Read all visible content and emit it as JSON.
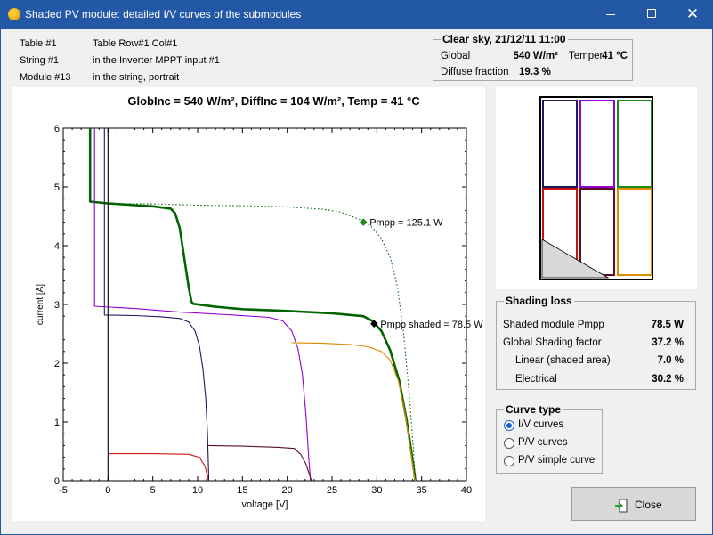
{
  "window": {
    "title": "Shaded PV module: detailed I/V curves of the submodules"
  },
  "info": {
    "rows": [
      {
        "label": "Table #1",
        "value": "Table Row#1 Col#1"
      },
      {
        "label": "String #1",
        "value": "in the Inverter MPPT input #1"
      },
      {
        "label": "Module #13",
        "value": "in the string, portrait"
      }
    ]
  },
  "weather": {
    "title": "Clear sky, 21/12/11 11:00",
    "global_label": "Global",
    "global_value": "540 W/m²",
    "temp_label": "Temper.",
    "temp_value": "41 °C",
    "diffuse_label": "Diffuse fraction",
    "diffuse_value": "19.3 %"
  },
  "chart_data": {
    "type": "line",
    "title": "GlobInc = 540 W/m², DiffInc = 104 W/m², Temp = 41 °C",
    "xlabel": "voltage [V]",
    "ylabel": "current [A]",
    "xlim": [
      -5,
      40
    ],
    "ylim": [
      0,
      6
    ],
    "xticks": [
      -5,
      0,
      5,
      10,
      15,
      20,
      25,
      30,
      35,
      40
    ],
    "yticks": [
      0,
      1,
      2,
      3,
      4,
      5,
      6
    ],
    "annotations": [
      {
        "text": "Pmpp = 125.1 W",
        "x": 28.5,
        "y": 4.4
      },
      {
        "text": "Pmpp shaded = 78.5 W",
        "x": 29.7,
        "y": 2.67
      }
    ],
    "series": [
      {
        "color": "#006400",
        "style": "dotted",
        "points": [
          [
            -2,
            4.74
          ],
          [
            0,
            4.72
          ],
          [
            5,
            4.71
          ],
          [
            10,
            4.69
          ],
          [
            15,
            4.68
          ],
          [
            20,
            4.66
          ],
          [
            24,
            4.62
          ],
          [
            26,
            4.57
          ],
          [
            28,
            4.45
          ],
          [
            29.5,
            4.31
          ],
          [
            30.5,
            4.12
          ],
          [
            31.5,
            3.8
          ],
          [
            32.3,
            3.3
          ],
          [
            33,
            2.5
          ],
          [
            33.6,
            1.5
          ],
          [
            34.1,
            0.5
          ],
          [
            34.3,
            0
          ]
        ]
      },
      {
        "color": "#006400",
        "style": "thick",
        "points": [
          [
            -2,
            6
          ],
          [
            -2,
            4.75
          ],
          [
            0,
            4.72
          ],
          [
            3,
            4.69
          ],
          [
            5,
            4.67
          ],
          [
            7,
            4.63
          ],
          [
            7.5,
            4.55
          ],
          [
            8,
            4.3
          ],
          [
            8.5,
            3.8
          ],
          [
            9,
            3.3
          ],
          [
            9.3,
            3.05
          ],
          [
            9.5,
            3.01
          ],
          [
            12,
            2.96
          ],
          [
            15,
            2.92
          ],
          [
            20,
            2.89
          ],
          [
            25,
            2.85
          ],
          [
            28.5,
            2.8
          ],
          [
            29.5,
            2.72
          ],
          [
            30.5,
            2.55
          ],
          [
            31.5,
            2.22
          ],
          [
            32.5,
            1.7
          ],
          [
            33.3,
            1.05
          ],
          [
            33.8,
            0.55
          ],
          [
            34.2,
            0.12
          ],
          [
            34.3,
            0
          ]
        ]
      },
      {
        "color": "#1b1b5e",
        "style": "solid",
        "points": [
          [
            -0.4,
            6
          ],
          [
            -0.4,
            2.82
          ],
          [
            3,
            2.81
          ],
          [
            6,
            2.79
          ],
          [
            8,
            2.76
          ],
          [
            9,
            2.7
          ],
          [
            9.7,
            2.55
          ],
          [
            10.2,
            2.3
          ],
          [
            10.6,
            1.9
          ],
          [
            10.9,
            1.4
          ],
          [
            11.1,
            0.8
          ],
          [
            11.25,
            0
          ]
        ]
      },
      {
        "color": "#9400d3",
        "style": "solid",
        "points": [
          [
            -1.5,
            6
          ],
          [
            -1.5,
            2.97
          ],
          [
            3,
            2.93
          ],
          [
            8,
            2.87
          ],
          [
            14,
            2.82
          ],
          [
            18,
            2.78
          ],
          [
            19.5,
            2.72
          ],
          [
            20.5,
            2.55
          ],
          [
            21.2,
            2.25
          ],
          [
            21.7,
            1.8
          ],
          [
            22.1,
            1.1
          ],
          [
            22.4,
            0.4
          ],
          [
            22.6,
            0
          ]
        ]
      },
      {
        "color": "#e08a00",
        "style": "solid",
        "points": [
          [
            20.5,
            2.35
          ],
          [
            24,
            2.34
          ],
          [
            27,
            2.32
          ],
          [
            29,
            2.28
          ],
          [
            30.5,
            2.2
          ],
          [
            31.5,
            2.05
          ],
          [
            32.4,
            1.7
          ],
          [
            33.1,
            1.2
          ],
          [
            33.7,
            0.6
          ],
          [
            34.2,
            0.05
          ],
          [
            34.3,
            0
          ]
        ]
      },
      {
        "color": "#5a0f22",
        "style": "solid",
        "points": [
          [
            11.2,
            0.6
          ],
          [
            15,
            0.59
          ],
          [
            19,
            0.57
          ],
          [
            20.8,
            0.55
          ],
          [
            21.5,
            0.45
          ],
          [
            22.1,
            0.28
          ],
          [
            22.6,
            0.05
          ],
          [
            22.7,
            0
          ]
        ]
      },
      {
        "color": "#cc1111",
        "style": "solid",
        "points": [
          [
            0,
            0.46
          ],
          [
            5,
            0.46
          ],
          [
            9,
            0.45
          ],
          [
            10.2,
            0.4
          ],
          [
            10.8,
            0.25
          ],
          [
            11.1,
            0.08
          ],
          [
            11.2,
            0
          ]
        ]
      },
      {
        "color": "#000000",
        "style": "solid",
        "points": [
          [
            0,
            0
          ],
          [
            0,
            6
          ]
        ]
      }
    ]
  },
  "module": {
    "submodule_colors": [
      "#1b1b5e",
      "#9400d3",
      "#1a8a1a",
      "#cc1111",
      "#5a0f22",
      "#e08a00"
    ]
  },
  "shading": {
    "title": "Shading loss",
    "rows": [
      {
        "label": "Shaded module Pmpp",
        "value": "78.5 W"
      },
      {
        "label": "Global Shading factor",
        "value": "37.2 %"
      },
      {
        "label": "Linear (shaded area)",
        "value": "7.0 %"
      },
      {
        "label": "Electrical",
        "value": "30.2 %"
      }
    ]
  },
  "curve_type": {
    "title": "Curve type",
    "options": [
      "I/V curves",
      "P/V curves",
      "P/V simple curve"
    ],
    "selected": 0
  },
  "close_button": {
    "label": "Close"
  }
}
